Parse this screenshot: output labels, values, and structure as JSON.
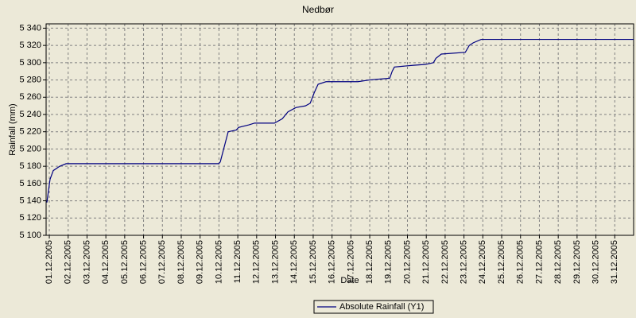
{
  "chart_data": {
    "type": "line",
    "title": "Nedbør",
    "x_label": "Date",
    "y_label": "Rainfall (mm)",
    "xlim": [
      0.83,
      32.0
    ],
    "ylim": [
      5100,
      5345
    ],
    "xticks": [
      {
        "value": 1,
        "label": "01.12.2005"
      },
      {
        "value": 2,
        "label": "02.12.2005"
      },
      {
        "value": 3,
        "label": "03.12.2005"
      },
      {
        "value": 4,
        "label": "04.12.2005"
      },
      {
        "value": 5,
        "label": "05.12.2005"
      },
      {
        "value": 6,
        "label": "06.12.2005"
      },
      {
        "value": 7,
        "label": "07.12.2005"
      },
      {
        "value": 8,
        "label": "08.12.2005"
      },
      {
        "value": 9,
        "label": "09.12.2005"
      },
      {
        "value": 10,
        "label": "10.12.2005"
      },
      {
        "value": 11,
        "label": "11.12.2005"
      },
      {
        "value": 12,
        "label": "12.12.2005"
      },
      {
        "value": 13,
        "label": "13.12.2005"
      },
      {
        "value": 14,
        "label": "14.12.2005"
      },
      {
        "value": 15,
        "label": "15.12.2005"
      },
      {
        "value": 16,
        "label": "16.12.2005"
      },
      {
        "value": 17,
        "label": "17.12.2005"
      },
      {
        "value": 18,
        "label": "18.12.2005"
      },
      {
        "value": 19,
        "label": "19.12.2005"
      },
      {
        "value": 20,
        "label": "20.12.2005"
      },
      {
        "value": 21,
        "label": "21.12.2005"
      },
      {
        "value": 22,
        "label": "22.12.2005"
      },
      {
        "value": 23,
        "label": "23.12.2005"
      },
      {
        "value": 24,
        "label": "24.12.2005"
      },
      {
        "value": 25,
        "label": "25.12.2005"
      },
      {
        "value": 26,
        "label": "26.12.2005"
      },
      {
        "value": 27,
        "label": "27.12.2005"
      },
      {
        "value": 28,
        "label": "28.12.2005"
      },
      {
        "value": 29,
        "label": "29.12.2005"
      },
      {
        "value": 30,
        "label": "30.12.2005"
      },
      {
        "value": 31,
        "label": "31.12.2005"
      }
    ],
    "yticks": [
      {
        "value": 5100,
        "label": "5 100"
      },
      {
        "value": 5120,
        "label": "5 120"
      },
      {
        "value": 5140,
        "label": "5 140"
      },
      {
        "value": 5160,
        "label": "5 160"
      },
      {
        "value": 5180,
        "label": "5 180"
      },
      {
        "value": 5200,
        "label": "5 200"
      },
      {
        "value": 5220,
        "label": "5 220"
      },
      {
        "value": 5240,
        "label": "5 240"
      },
      {
        "value": 5260,
        "label": "5 260"
      },
      {
        "value": 5280,
        "label": "5 280"
      },
      {
        "value": 5300,
        "label": "5 300"
      },
      {
        "value": 5320,
        "label": "5 320"
      },
      {
        "value": 5340,
        "label": "5 340"
      }
    ],
    "grid": true,
    "legend": "bottom",
    "x": [
      0.87,
      1.04,
      1.21,
      1.55,
      1.89,
      9.99,
      10.07,
      10.49,
      10.92,
      11.04,
      11.59,
      11.89,
      12.94,
      13.36,
      13.66,
      14.08,
      14.59,
      14.84,
      15.05,
      15.26,
      15.68,
      17.37,
      18.0,
      19.06,
      19.19,
      19.31,
      20.32,
      20.96,
      21.38,
      21.51,
      21.8,
      23.07,
      23.28,
      23.49,
      23.91,
      32.0
    ],
    "series": [
      {
        "name": "Absolute Rainfall (Y1)",
        "color": "#000080",
        "values": [
          5138,
          5165,
          5175,
          5180,
          5183,
          5183,
          5185,
          5220,
          5222,
          5225,
          5228,
          5230,
          5230,
          5235,
          5243,
          5248,
          5250,
          5253,
          5265,
          5275,
          5278,
          5278,
          5280,
          5282,
          5290,
          5295,
          5297,
          5298,
          5300,
          5305,
          5310,
          5312,
          5320,
          5323,
          5327,
          5327
        ]
      }
    ]
  }
}
